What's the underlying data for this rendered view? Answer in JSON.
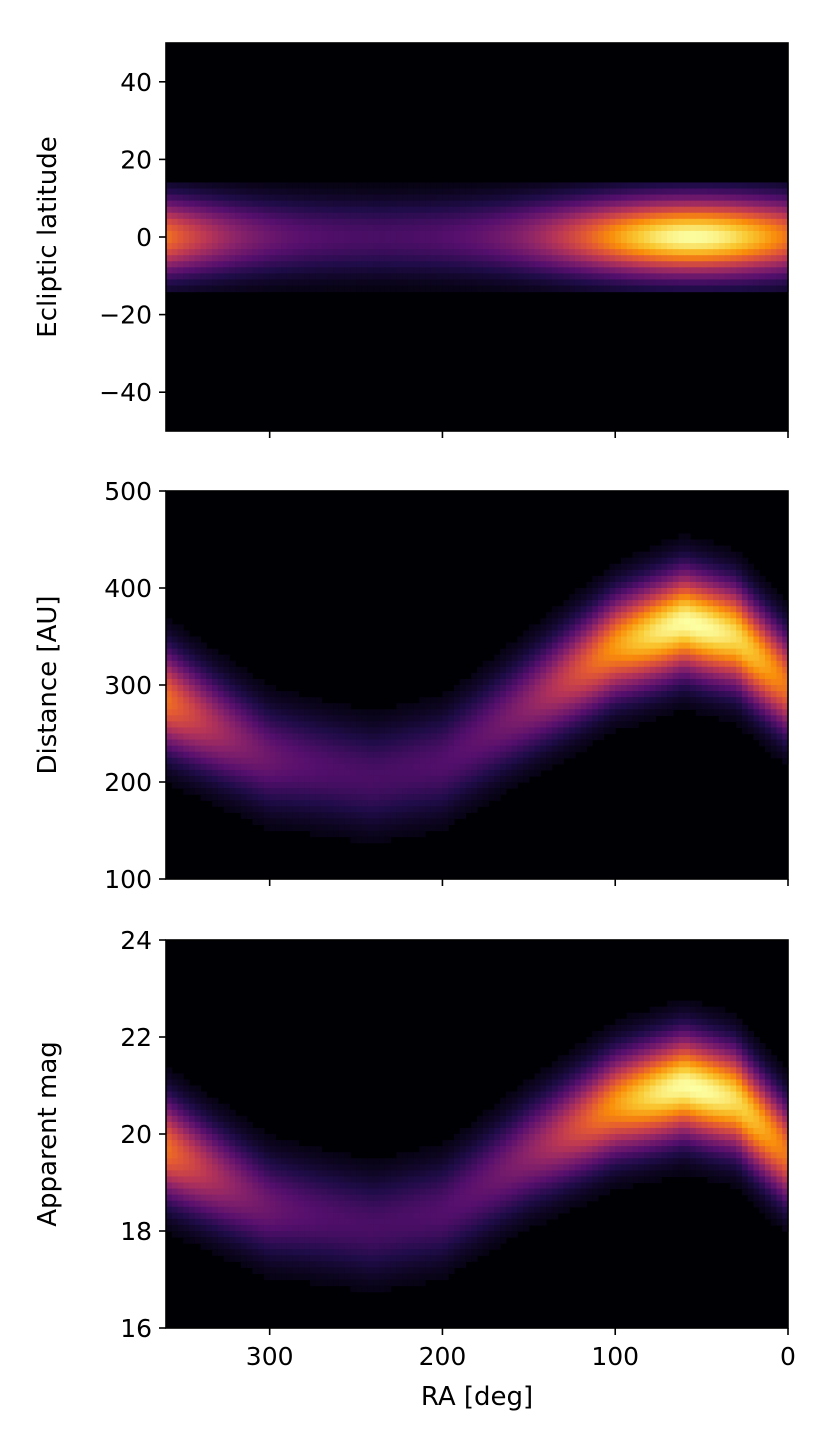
{
  "chart_data": [
    {
      "type": "heatmap",
      "panel": "top",
      "title": "",
      "xlabel": "",
      "ylabel": "Ecliptic latitude",
      "xlim": [
        360,
        0
      ],
      "ylim": [
        -50,
        50
      ],
      "x_ticks": [
        300,
        200,
        100,
        0
      ],
      "x_tick_labels_shown": false,
      "y_ticks": [
        40,
        20,
        0,
        -20,
        -40
      ],
      "y_tick_labels": [
        "40",
        "20",
        "0",
        "−20",
        "−40"
      ],
      "colormap": "inferno",
      "density_model": {
        "ridge_center": [
          {
            "ra": 60,
            "value": 0
          }
        ],
        "band_extent": [
          -14,
          14
        ],
        "intensity_peak_ra": 55
      }
    },
    {
      "type": "heatmap",
      "panel": "middle",
      "title": "",
      "xlabel": "",
      "ylabel": "Distance [AU]",
      "xlim": [
        360,
        0
      ],
      "ylim": [
        100,
        500
      ],
      "x_ticks": [
        300,
        200,
        100,
        0
      ],
      "x_tick_labels_shown": false,
      "y_ticks": [
        500,
        400,
        300,
        200,
        100
      ],
      "y_tick_labels": [
        "500",
        "400",
        "300",
        "200",
        "100"
      ],
      "colormap": "inferno",
      "density_model": {
        "ridge": [
          {
            "ra": 360,
            "value": 285
          },
          {
            "ra": 300,
            "value": 225
          },
          {
            "ra": 240,
            "value": 205
          },
          {
            "ra": 200,
            "value": 220
          },
          {
            "ra": 150,
            "value": 280
          },
          {
            "ra": 100,
            "value": 340
          },
          {
            "ra": 60,
            "value": 365
          },
          {
            "ra": 30,
            "value": 350
          },
          {
            "ra": 0,
            "value": 300
          }
        ],
        "intensity_peak_ra": 55
      }
    },
    {
      "type": "heatmap",
      "panel": "bottom",
      "title": "",
      "xlabel": "RA [deg]",
      "ylabel": "Apparent mag",
      "xlim": [
        360,
        0
      ],
      "ylim": [
        16,
        24
      ],
      "x_ticks": [
        300,
        200,
        100,
        0
      ],
      "x_tick_labels": [
        "300",
        "200",
        "100",
        "0"
      ],
      "y_ticks": [
        24,
        22,
        20,
        18,
        16
      ],
      "y_tick_labels": [
        "24",
        "22",
        "20",
        "18",
        "16"
      ],
      "colormap": "inferno",
      "density_model": {
        "ridge": [
          {
            "ra": 360,
            "value": 19.7
          },
          {
            "ra": 300,
            "value": 18.5
          },
          {
            "ra": 240,
            "value": 18.1
          },
          {
            "ra": 200,
            "value": 18.4
          },
          {
            "ra": 150,
            "value": 19.6
          },
          {
            "ra": 100,
            "value": 20.6
          },
          {
            "ra": 60,
            "value": 21.0
          },
          {
            "ra": 30,
            "value": 20.7
          },
          {
            "ra": 0,
            "value": 19.6
          }
        ],
        "intensity_peak_ra": 55
      }
    }
  ]
}
